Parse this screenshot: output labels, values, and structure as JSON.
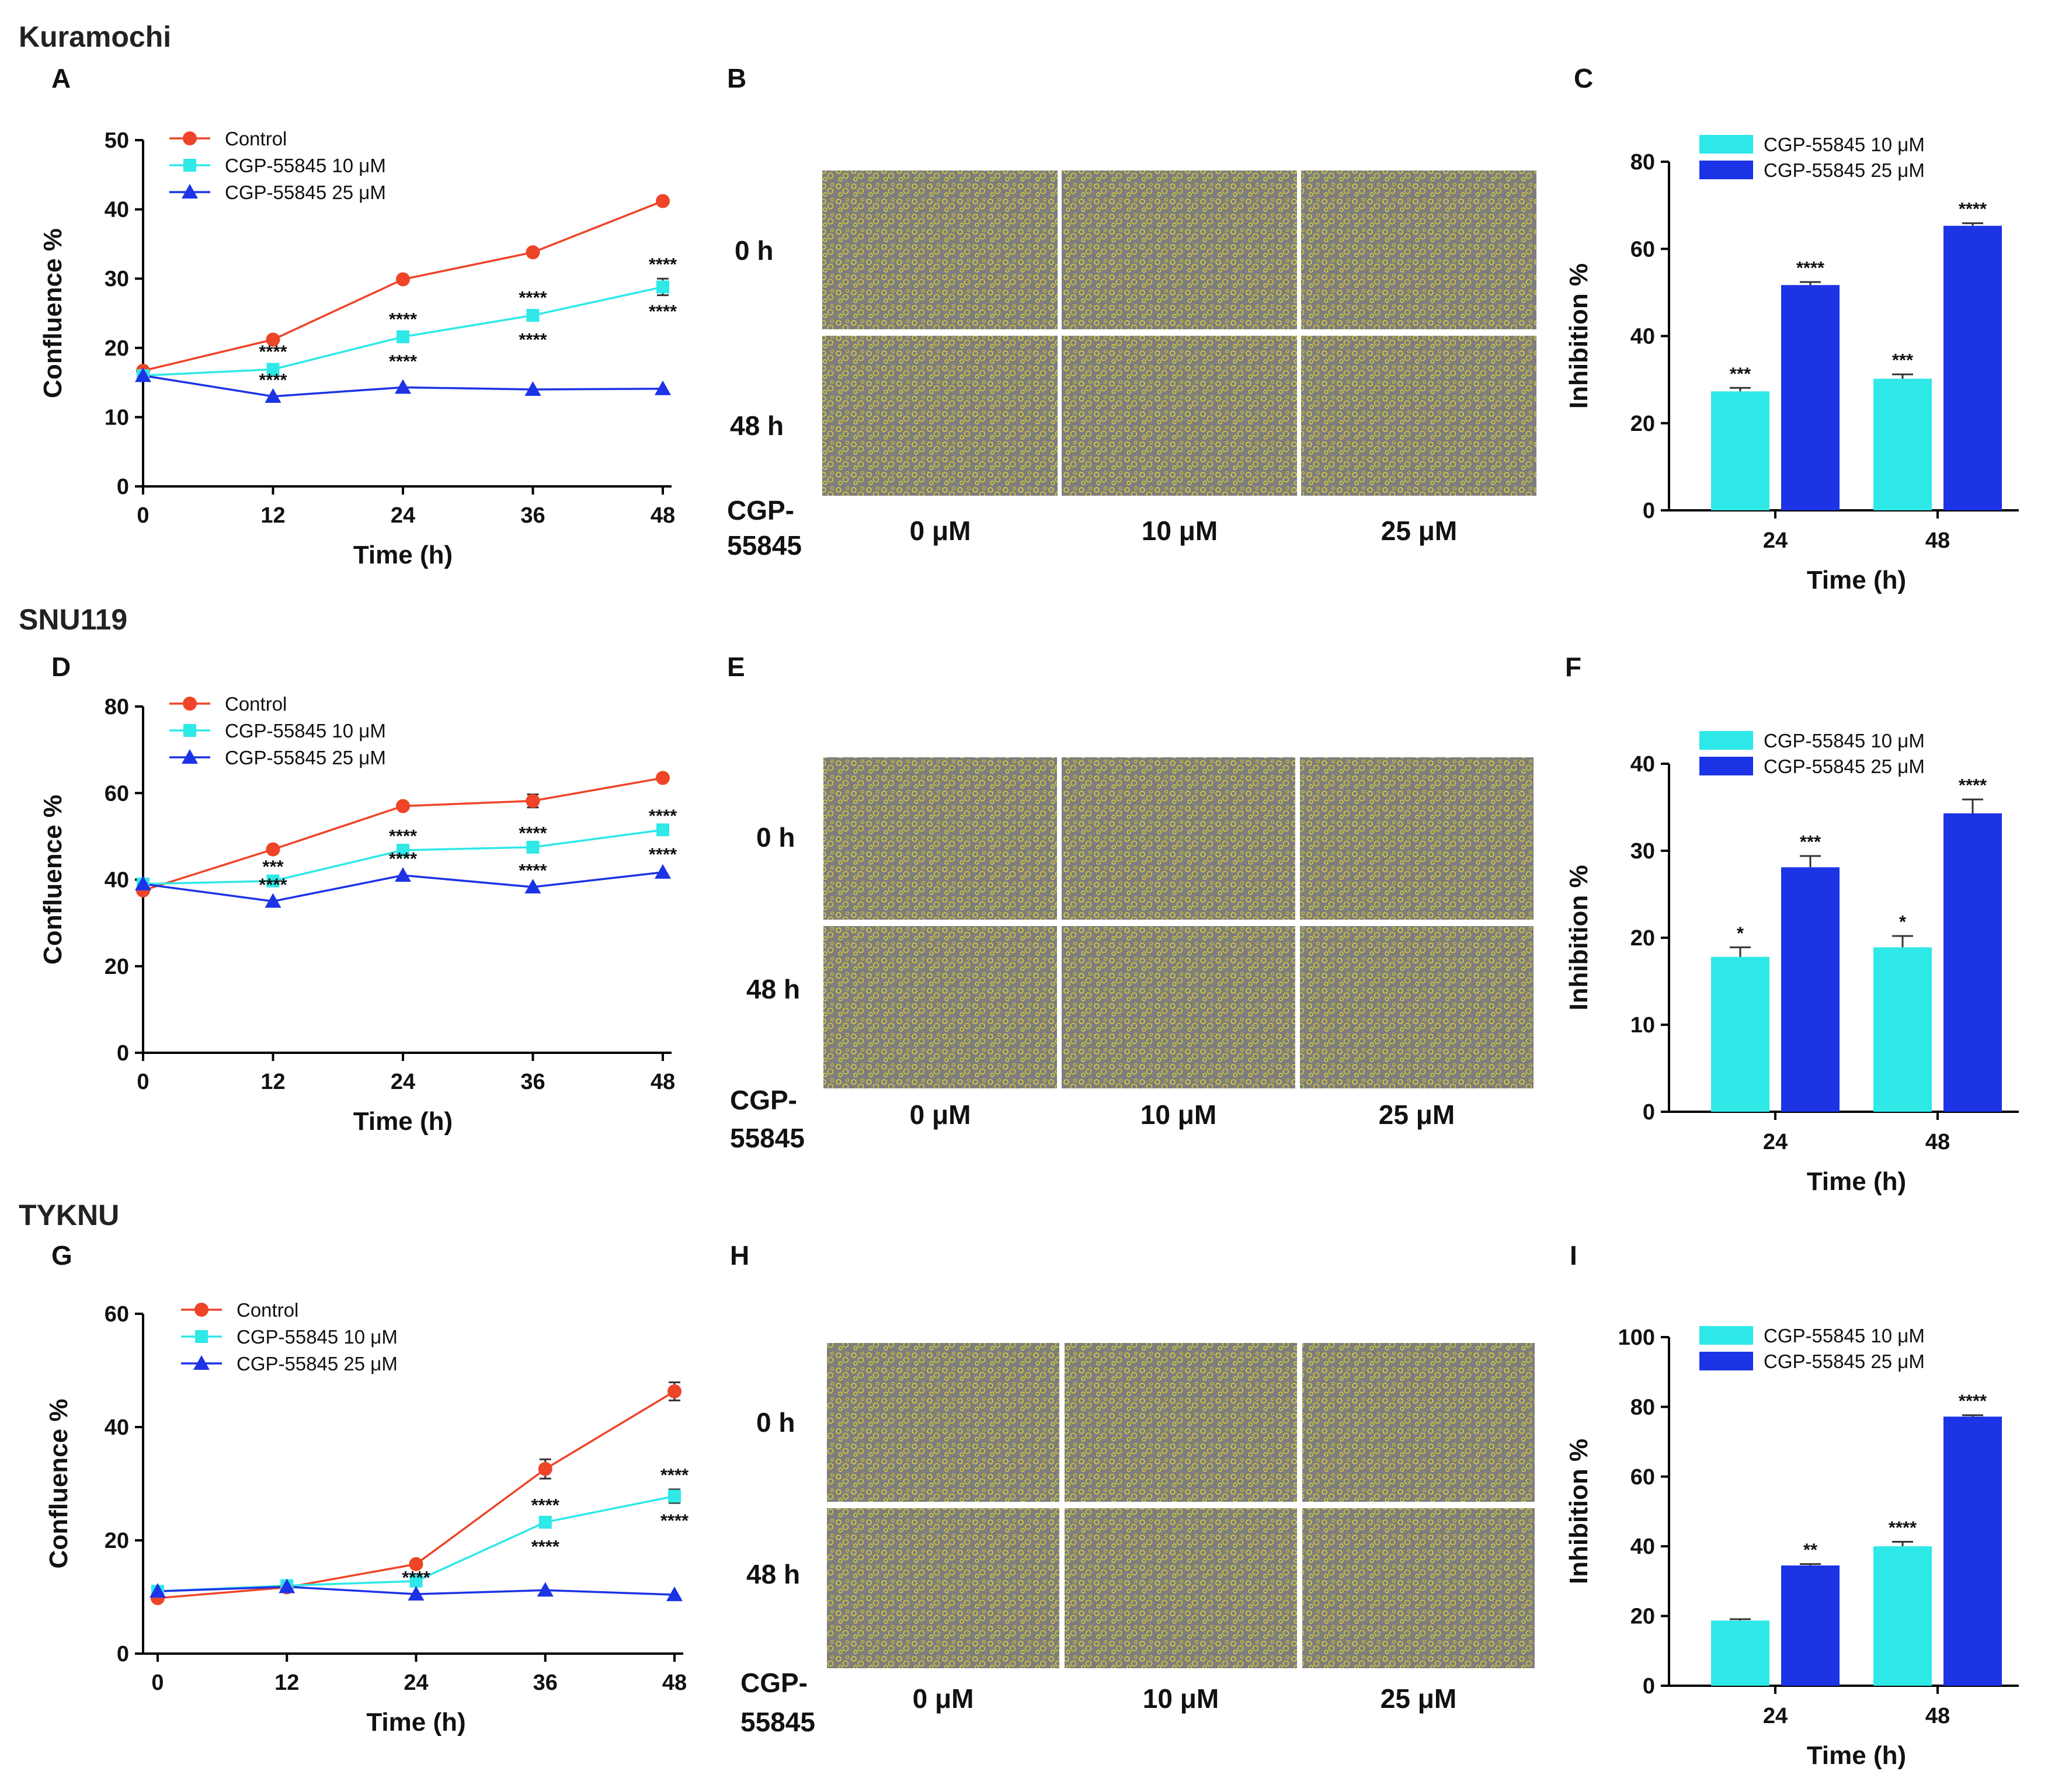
{
  "colors": {
    "control": "#ee4428",
    "cgp10": "#2fe8e8",
    "cgp25": "#1c33e6",
    "axis": "#000000",
    "micro_bg": "#7e7e7e",
    "cells": "#e2d632"
  },
  "sections": [
    {
      "name": "Kuramochi"
    },
    {
      "name": "SNU119"
    },
    {
      "name": "TYKNU"
    }
  ],
  "micrographs": [
    {
      "panel": "B",
      "row_labels": [
        "0 h",
        "48 h"
      ],
      "agent_line1": "CGP-",
      "agent_line2": "55845",
      "col_labels": [
        "0 μM",
        "10 μM",
        "25 μM"
      ]
    },
    {
      "panel": "E",
      "row_labels": [
        "0 h",
        "48 h"
      ],
      "agent_line1": "CGP-",
      "agent_line2": "55845",
      "col_labels": [
        "0 μM",
        "10 μM",
        "25 μM"
      ]
    },
    {
      "panel": "H",
      "row_labels": [
        "0 h",
        "48 h"
      ],
      "agent_line1": "CGP-",
      "agent_line2": "55845",
      "col_labels": [
        "0 μM",
        "10 μM",
        "25 μM"
      ]
    }
  ],
  "chart_data": [
    {
      "panel": "A",
      "type": "line",
      "xlabel": "Time (h)",
      "ylabel": "Confluence %",
      "x": [
        0,
        12,
        24,
        36,
        48
      ],
      "xticks": [
        "0",
        "12",
        "24",
        "36",
        "48"
      ],
      "ylim": [
        0,
        50
      ],
      "yticks": [
        "0",
        "10",
        "20",
        "30",
        "40",
        "50"
      ],
      "legend_position": "top-left",
      "series": [
        {
          "name": "Control",
          "marker": "circle",
          "color": "#ee4428",
          "values": [
            16.7,
            21.2,
            29.9,
            33.8,
            41.2
          ],
          "errors": [
            0,
            0,
            0,
            0,
            0
          ],
          "sig": [
            "",
            "",
            "",
            "",
            ""
          ]
        },
        {
          "name": "CGP-55845 10 μM",
          "marker": "square",
          "color": "#2fe8e8",
          "values": [
            16.0,
            16.9,
            21.6,
            24.7,
            28.8
          ],
          "errors": [
            0,
            0.5,
            0.5,
            0.5,
            1.2
          ],
          "sig": [
            "",
            "****",
            "****",
            "****",
            "****"
          ]
        },
        {
          "name": "CGP-55845 25 μM",
          "marker": "triangle",
          "color": "#1c33e6",
          "values": [
            16.0,
            13.0,
            14.3,
            14.0,
            14.1
          ],
          "errors": [
            0,
            0,
            0,
            0,
            0
          ],
          "sig": [
            "",
            "****",
            "****",
            "****",
            "****"
          ]
        }
      ]
    },
    {
      "panel": "C",
      "type": "bar",
      "xlabel": "Time (h)",
      "ylabel": "Inhibition %",
      "categories": [
        "24",
        "48"
      ],
      "ylim": [
        0,
        80
      ],
      "yticks": [
        "0",
        "20",
        "40",
        "60",
        "80"
      ],
      "legend_position": "top",
      "series": [
        {
          "name": "CGP-55845 10 μM",
          "color": "#2fe8e8",
          "values": [
            27.3,
            30.2
          ],
          "errors": [
            0.8,
            1.0
          ],
          "sig": [
            "***",
            "***"
          ]
        },
        {
          "name": "CGP-55845 25 μM",
          "color": "#1c33e6",
          "values": [
            51.7,
            65.3
          ],
          "errors": [
            0.7,
            0.6
          ],
          "sig": [
            "****",
            "****"
          ]
        }
      ]
    },
    {
      "panel": "D",
      "type": "line",
      "xlabel": "Time (h)",
      "ylabel": "Confluence %",
      "x": [
        0,
        12,
        24,
        36,
        48
      ],
      "xticks": [
        "0",
        "12",
        "24",
        "36",
        "48"
      ],
      "ylim": [
        0,
        80
      ],
      "yticks": [
        "0",
        "20",
        "40",
        "60",
        "80"
      ],
      "legend_position": "top-left",
      "series": [
        {
          "name": "Control",
          "marker": "circle",
          "color": "#ee4428",
          "values": [
            37.5,
            47.0,
            57.0,
            58.2,
            63.5
          ],
          "errors": [
            0,
            0,
            0,
            1.5,
            0
          ],
          "sig": [
            "",
            "",
            "",
            "",
            ""
          ]
        },
        {
          "name": "CGP-55845 10 μM",
          "marker": "square",
          "color": "#2fe8e8",
          "values": [
            39.0,
            39.7,
            46.8,
            47.5,
            51.5
          ],
          "errors": [
            0,
            0,
            0,
            0,
            0
          ],
          "sig": [
            "",
            "***",
            "****",
            "****",
            "****"
          ]
        },
        {
          "name": "CGP-55845 25 μM",
          "marker": "triangle",
          "color": "#1c33e6",
          "values": [
            39.0,
            35.0,
            41.0,
            38.3,
            41.7
          ],
          "errors": [
            0,
            0,
            0,
            0,
            0
          ],
          "sig": [
            "",
            "****",
            "****",
            "****",
            "****"
          ]
        }
      ]
    },
    {
      "panel": "F",
      "type": "bar",
      "xlabel": "Time (h)",
      "ylabel": "Inhibition %",
      "categories": [
        "24",
        "48"
      ],
      "ylim": [
        0,
        40
      ],
      "yticks": [
        "0",
        "10",
        "20",
        "30",
        "40"
      ],
      "legend_position": "top",
      "series": [
        {
          "name": "CGP-55845 10 μM",
          "color": "#2fe8e8",
          "values": [
            17.8,
            18.9
          ],
          "errors": [
            1.1,
            1.3
          ],
          "sig": [
            "*",
            "*"
          ]
        },
        {
          "name": "CGP-55845 25 μM",
          "color": "#1c33e6",
          "values": [
            28.1,
            34.3
          ],
          "errors": [
            1.3,
            1.6
          ],
          "sig": [
            "***",
            "****"
          ]
        }
      ]
    },
    {
      "panel": "G",
      "type": "line",
      "xlabel": "Time (h)",
      "ylabel": "Confluence %",
      "x": [
        0,
        12,
        24,
        36,
        48
      ],
      "xticks": [
        "0",
        "12",
        "24",
        "36",
        "48"
      ],
      "ylim": [
        0,
        60
      ],
      "yticks": [
        "0",
        "20",
        "40",
        "60"
      ],
      "legend_position": "top-left",
      "series": [
        {
          "name": "Control",
          "marker": "circle",
          "color": "#ee4428",
          "values": [
            9.8,
            11.7,
            15.8,
            32.6,
            46.3
          ],
          "errors": [
            0,
            0,
            0,
            1.7,
            1.6
          ],
          "sig": [
            "",
            "",
            "",
            "",
            ""
          ]
        },
        {
          "name": "CGP-55845 10 μM",
          "marker": "square",
          "color": "#2fe8e8",
          "values": [
            11.0,
            12.0,
            12.8,
            23.2,
            27.8
          ],
          "errors": [
            0,
            0.5,
            0,
            0.5,
            1.2
          ],
          "sig": [
            "",
            "",
            "",
            "****",
            "****"
          ]
        },
        {
          "name": "CGP-55845 25 μM",
          "marker": "triangle",
          "color": "#1c33e6",
          "values": [
            11.0,
            11.8,
            10.5,
            11.2,
            10.4
          ],
          "errors": [
            0,
            0,
            0,
            0,
            0
          ],
          "sig": [
            "",
            "",
            "****",
            "****",
            "****"
          ]
        }
      ]
    },
    {
      "panel": "I",
      "type": "bar",
      "xlabel": "Time (h)",
      "ylabel": "Inhibition %",
      "categories": [
        "24",
        "48"
      ],
      "ylim": [
        0,
        100
      ],
      "yticks": [
        "0",
        "20",
        "40",
        "60",
        "80",
        "100"
      ],
      "legend_position": "top",
      "series": [
        {
          "name": "CGP-55845 10 μM",
          "color": "#2fe8e8",
          "values": [
            18.7,
            40.0
          ],
          "errors": [
            0.4,
            1.3
          ],
          "sig": [
            "",
            "****"
          ]
        },
        {
          "name": "CGP-55845 25 μM",
          "color": "#1c33e6",
          "values": [
            34.5,
            77.2
          ],
          "errors": [
            0.4,
            0.4
          ],
          "sig": [
            "**",
            "****"
          ]
        }
      ]
    }
  ]
}
